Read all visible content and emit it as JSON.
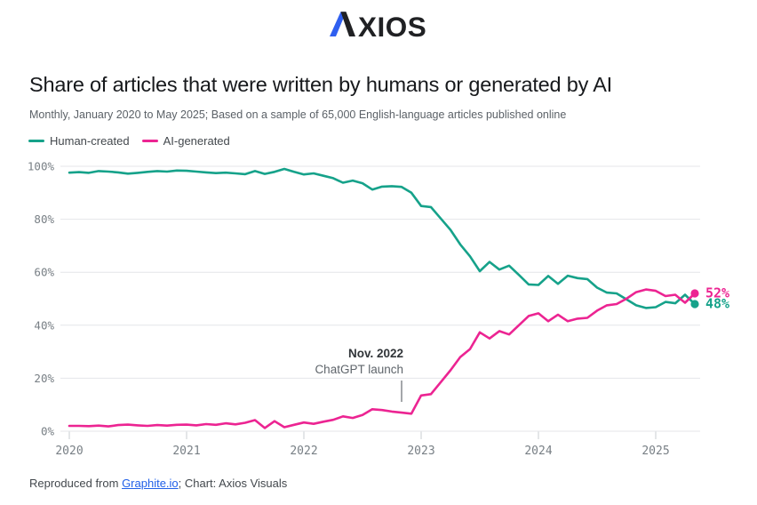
{
  "brand": {
    "logo_text_rest": "XIOS",
    "logo_blue": "#2f5ff0",
    "logo_black": "#202124"
  },
  "header": {
    "title": "Share of articles that were written by humans or generated by AI",
    "subtitle": "Monthly, January 2020 to May 2025; Based on a sample of 65,000 English-language articles published online"
  },
  "legend": [
    {
      "label": "Human-created",
      "color": "#16a28a"
    },
    {
      "label": "AI-generated",
      "color": "#ec2492"
    }
  ],
  "annotation": {
    "line1": "Nov. 2022",
    "line2": "ChatGPT launch",
    "month_index": 34
  },
  "footer": {
    "prefix": "Reproduced from ",
    "link": "Graphite.io",
    "suffix": "; Chart: Axios Visuals"
  },
  "chart_data": {
    "type": "line",
    "title": "Share of articles that were written by humans or generated by AI",
    "x_unit": "month",
    "x_start": "2020-01",
    "x_end": "2025-05",
    "x_tick_labels": [
      "2020",
      "2021",
      "2022",
      "2023",
      "2024",
      "2025"
    ],
    "x_tick_month_indices": [
      0,
      12,
      24,
      36,
      48,
      60
    ],
    "y_tick_labels": [
      "0%",
      "20%",
      "40%",
      "60%",
      "80%",
      "100%"
    ],
    "y_tick_values": [
      0,
      20,
      40,
      60,
      80,
      100
    ],
    "ylim": [
      0,
      100
    ],
    "grid": "horizontal",
    "legend_position": "top-left",
    "series": [
      {
        "name": "Human-created",
        "color": "#16a28a",
        "end_label": "48%",
        "values": [
          97.6,
          97.8,
          97.5,
          98.2,
          98.0,
          97.7,
          97.2,
          97.5,
          97.9,
          98.2,
          98.0,
          98.4,
          98.3,
          98.0,
          97.7,
          97.4,
          97.6,
          97.3,
          97.0,
          98.2,
          97.1,
          97.9,
          99.0,
          97.9,
          96.9,
          97.3,
          96.4,
          95.5,
          93.8,
          94.6,
          93.6,
          91.2,
          92.3,
          92.5,
          92.2,
          90.0,
          85.0,
          84.6,
          80.3,
          76.0,
          70.5,
          66.0,
          60.4,
          63.9,
          61.0,
          62.5,
          59.0,
          55.4,
          55.2,
          58.6,
          55.6,
          58.7,
          57.8,
          57.4,
          54.2,
          52.3,
          52.0,
          49.8,
          47.5,
          46.5,
          46.8,
          48.8,
          48.3,
          51.5,
          48.0
        ]
      },
      {
        "name": "AI-generated",
        "color": "#ec2492",
        "end_label": "52%",
        "values": [
          2.0,
          2.0,
          1.9,
          2.1,
          1.8,
          2.3,
          2.5,
          2.2,
          2.0,
          2.3,
          2.1,
          2.4,
          2.5,
          2.2,
          2.7,
          2.4,
          3.0,
          2.6,
          3.2,
          4.2,
          1.2,
          3.8,
          1.5,
          2.4,
          3.3,
          2.8,
          3.6,
          4.3,
          5.6,
          5.0,
          6.1,
          8.3,
          8.0,
          7.4,
          7.0,
          6.6,
          13.5,
          14.0,
          18.5,
          23.0,
          28.0,
          31.0,
          37.3,
          35.0,
          37.8,
          36.5,
          40.0,
          43.5,
          44.5,
          41.5,
          44.0,
          41.5,
          42.5,
          42.8,
          45.5,
          47.5,
          48.0,
          50.0,
          52.5,
          53.5,
          53.0,
          51.0,
          51.5,
          48.5,
          52.0
        ]
      }
    ]
  }
}
